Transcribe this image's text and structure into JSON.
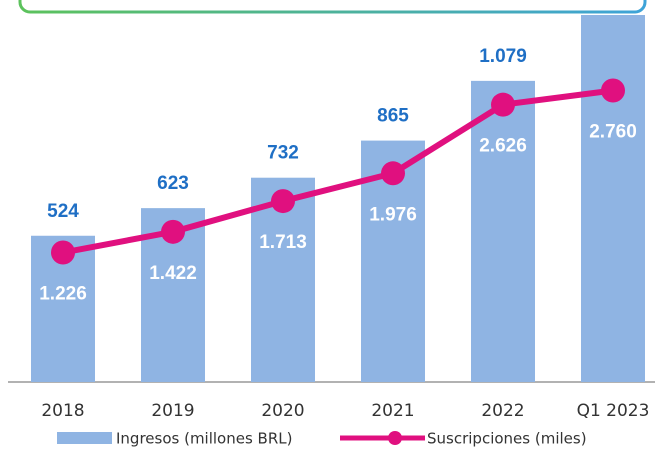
{
  "chart_data": {
    "type": "bar-line",
    "categories": [
      "2018",
      "2019",
      "2020",
      "2021",
      "2022",
      "Q1 2023"
    ],
    "series": [
      {
        "name": "Ingresos (millones BRL)",
        "type": "bar",
        "color": "#8fb4e3",
        "values": [
          524,
          623,
          732,
          865,
          1079,
          1315
        ],
        "value_labels": [
          "524",
          "623",
          "732",
          "865",
          "1.079",
          null
        ]
      },
      {
        "name": "Suscripciones (miles)",
        "type": "line",
        "axis": "y2",
        "color": "#e0107f",
        "values": [
          1226,
          1422,
          1713,
          1976,
          2626,
          2760
        ],
        "value_labels": [
          "1.226",
          "1.422",
          "1.713",
          "1.976",
          "2.626",
          "2.760"
        ]
      }
    ],
    "ylim": [
      0,
      1315
    ],
    "y2lim": [
      0,
      3475
    ]
  }
}
